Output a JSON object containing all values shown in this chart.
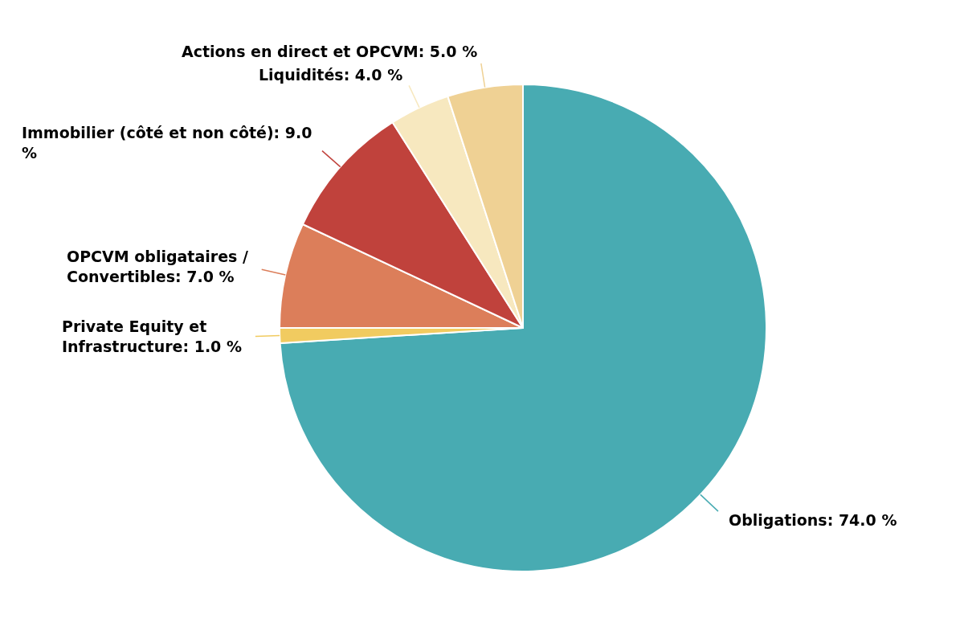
{
  "chart_data": {
    "type": "pie",
    "categories": [
      "Obligations",
      "Private Equity et Infrastructure",
      "OPCVM obligataires / Convertibles",
      "Immobilier (côté et non côté)",
      "Liquidités",
      "Actions en direct et OPCVM"
    ],
    "values": [
      74,
      1,
      7,
      9,
      4,
      5
    ],
    "value_labels": [
      "74.0 %",
      "1.0 %",
      "7.0 %",
      "9.0 %",
      "4.0 %",
      "5.0 %"
    ],
    "colors": [
      "#48abb2",
      "#f1cb60",
      "#dc7e5a",
      "#c0423c",
      "#f7e8bf",
      "#efd194"
    ],
    "legend": false
  }
}
